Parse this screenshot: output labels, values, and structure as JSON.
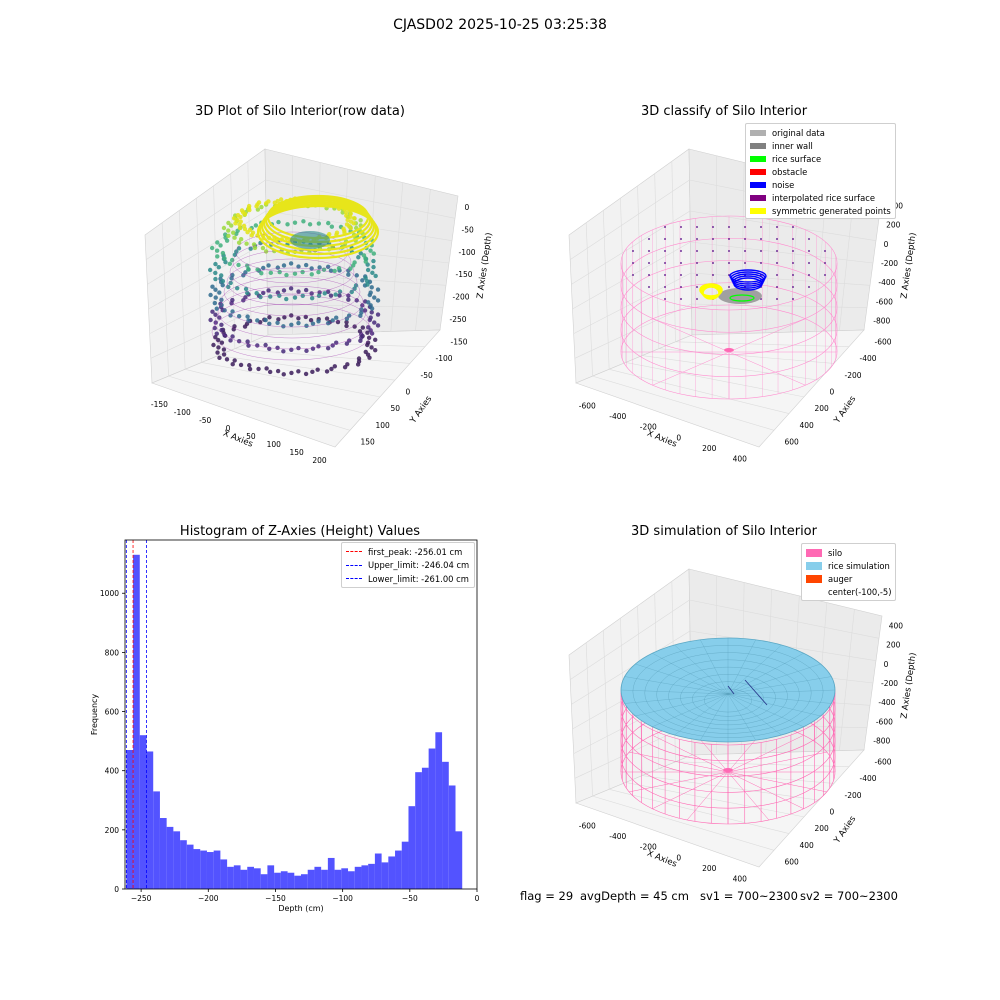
{
  "suptitle": "CJASD02 2025-10-25 03:25:38",
  "panels": {
    "raw": {
      "title": "3D Plot of Silo Interior(row data)",
      "xlabel": "X Axies",
      "ylabel": "Y Axies",
      "zlabel": "Z Axies (Depth)",
      "xticks": [
        "-150",
        "-100",
        "-50",
        "0",
        "50",
        "100",
        "150",
        "200"
      ],
      "yticks": [
        "150",
        "100",
        "50",
        "0",
        "-50",
        "-100",
        "-150"
      ],
      "zticks": [
        "0",
        "-50",
        "-100",
        "-150",
        "-200",
        "-250"
      ]
    },
    "classify": {
      "title": "3D classify of Silo Interior",
      "xlabel": "X Axies",
      "ylabel": "Y Axies",
      "zlabel": "Z Axies (Depth)",
      "xticks": [
        "-600",
        "-400",
        "-200",
        "0",
        "200",
        "400"
      ],
      "yticks": [
        "600",
        "400",
        "200",
        "0",
        "-200",
        "-400",
        "-600"
      ],
      "zticks": [
        "400",
        "200",
        "0",
        "-200",
        "-400",
        "-600",
        "-800"
      ],
      "legend": [
        {
          "label": "original data",
          "color": "#b0b0b0"
        },
        {
          "label": "inner wall",
          "color": "#808080"
        },
        {
          "label": "rice surface",
          "color": "#00ff00"
        },
        {
          "label": "obstacle",
          "color": "#ff0000"
        },
        {
          "label": "noise",
          "color": "#0000ff"
        },
        {
          "label": "interpolated rice surface",
          "color": "#800080"
        },
        {
          "label": "symmetric generated points",
          "color": "#ffff00"
        }
      ]
    },
    "simulation": {
      "title": "3D simulation of Silo Interior",
      "xlabel": "X Axies",
      "ylabel": "Y Axies",
      "zlabel": "Z Axies (Depth)",
      "xticks": [
        "-600",
        "-400",
        "-200",
        "0",
        "200",
        "400"
      ],
      "yticks": [
        "600",
        "400",
        "200",
        "0",
        "-200",
        "-400",
        "-600"
      ],
      "zticks": [
        "400",
        "200",
        "0",
        "-200",
        "-400",
        "-600",
        "-800"
      ],
      "legend": [
        {
          "label": "silo",
          "color": "#ff69b4"
        },
        {
          "label": "rice simulation",
          "color": "#87ceeb"
        },
        {
          "label": "auger",
          "color": "#ff4500"
        },
        {
          "label": "center(-100,-5)",
          "color": ""
        }
      ]
    }
  },
  "footer": {
    "flag": "flag = 29",
    "avg": "avgDepth = 45 cm",
    "sv1": "sv1 = 700~2300",
    "sv2": "sv2 = 700~2300"
  },
  "colors": {
    "bars": "#4a4aff",
    "first_peak": "#ff0000",
    "limit": "#0000ff"
  },
  "chart_data": [
    {
      "type": "bar",
      "title": "Histogram of Z-Axies (Height) Values",
      "xlabel": "Depth (cm)",
      "ylabel": "Frequency",
      "xlim": [
        -262,
        0
      ],
      "ylim": [
        0,
        1180
      ],
      "xticks": [
        -250,
        -200,
        -150,
        -100,
        -50,
        0
      ],
      "yticks": [
        0,
        200,
        400,
        600,
        800,
        1000
      ],
      "bin_start": -261,
      "bin_width": 5.0,
      "values": [
        470,
        1130,
        520,
        465,
        330,
        240,
        210,
        195,
        165,
        150,
        135,
        130,
        125,
        130,
        100,
        75,
        80,
        65,
        75,
        70,
        50,
        80,
        55,
        60,
        55,
        45,
        50,
        65,
        75,
        65,
        105,
        65,
        70,
        60,
        75,
        80,
        85,
        120,
        90,
        110,
        130,
        160,
        280,
        395,
        410,
        475,
        530,
        430,
        350,
        195
      ],
      "vlines": [
        {
          "label": "first_peak: -256.01 cm",
          "x": -256.01,
          "color": "#ff0000"
        },
        {
          "label": "Upper_limit: -246.04 cm",
          "x": -246.04,
          "color": "#0000ff"
        },
        {
          "label": "Lower_limit: -261.00 cm",
          "x": -261.0,
          "color": "#0000ff"
        }
      ],
      "legend": "top-right"
    }
  ]
}
